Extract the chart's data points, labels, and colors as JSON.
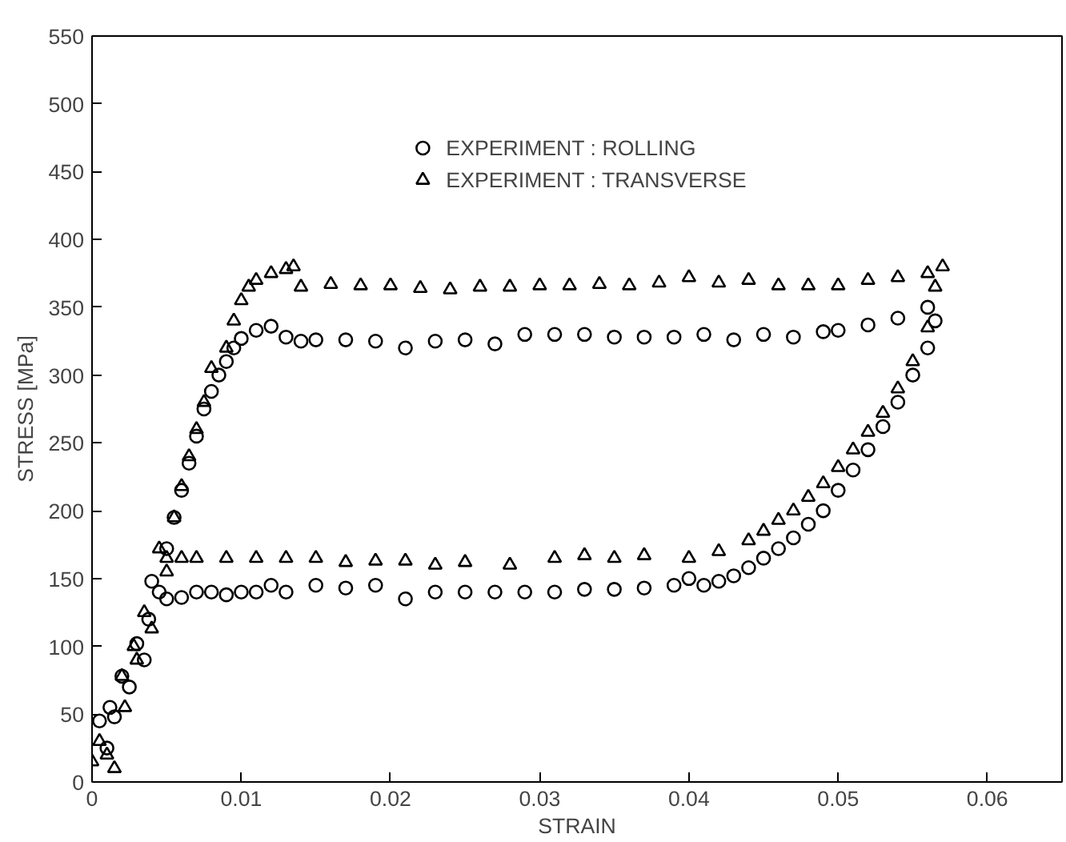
{
  "chart_data": {
    "type": "scatter",
    "xlabel": "STRAIN",
    "ylabel": "STRESS [MPa]",
    "xlim": [
      0,
      0.065
    ],
    "ylim": [
      0,
      550
    ],
    "xticks": [
      0,
      0.01,
      0.02,
      0.03,
      0.04,
      0.05,
      0.06
    ],
    "yticks": [
      0,
      50,
      100,
      150,
      200,
      250,
      300,
      350,
      400,
      450,
      500,
      550
    ],
    "grid": false,
    "legend": "top",
    "series": [
      {
        "name": "EXPERIMENT : ROLLING",
        "color": "#000000",
        "marker": "circle",
        "x": [
          0.0005,
          0.001,
          0.0012,
          0.0015,
          0.002,
          0.0025,
          0.003,
          0.0035,
          0.0038,
          0.004,
          0.0045,
          0.005,
          0.0055,
          0.006,
          0.0065,
          0.007,
          0.0075,
          0.008,
          0.0085,
          0.009,
          0.0095,
          0.01,
          0.011,
          0.012,
          0.013,
          0.014,
          0.015,
          0.017,
          0.019,
          0.021,
          0.023,
          0.025,
          0.027,
          0.029,
          0.031,
          0.033,
          0.035,
          0.037,
          0.039,
          0.041,
          0.043,
          0.045,
          0.047,
          0.049,
          0.05,
          0.052,
          0.054,
          0.056,
          0.005,
          0.006,
          0.007,
          0.008,
          0.009,
          0.01,
          0.011,
          0.012,
          0.013,
          0.015,
          0.017,
          0.019,
          0.021,
          0.023,
          0.025,
          0.027,
          0.029,
          0.031,
          0.033,
          0.035,
          0.037,
          0.039,
          0.04,
          0.041,
          0.042,
          0.043,
          0.044,
          0.045,
          0.046,
          0.047,
          0.048,
          0.049,
          0.05,
          0.051,
          0.052,
          0.053,
          0.054,
          0.055,
          0.056,
          0.0565
        ],
        "values": [
          45,
          25,
          55,
          48,
          78,
          70,
          102,
          90,
          120,
          148,
          140,
          172,
          195,
          215,
          235,
          255,
          275,
          288,
          300,
          310,
          320,
          327,
          333,
          336,
          328,
          325,
          326,
          326,
          325,
          320,
          325,
          326,
          323,
          330,
          330,
          330,
          328,
          328,
          328,
          330,
          326,
          330,
          328,
          332,
          333,
          337,
          342,
          350,
          135,
          136,
          140,
          140,
          138,
          140,
          140,
          145,
          140,
          145,
          143,
          145,
          135,
          140,
          140,
          140,
          140,
          140,
          142,
          142,
          143,
          145,
          150,
          145,
          148,
          152,
          158,
          165,
          172,
          180,
          190,
          200,
          215,
          230,
          245,
          262,
          280,
          300,
          320,
          340
        ]
      },
      {
        "name": "EXPERIMENT : TRANSVERSE",
        "color": "#000000",
        "marker": "triangle",
        "x": [
          0,
          0.0005,
          0.001,
          0.0015,
          0.002,
          0.0022,
          0.0028,
          0.003,
          0.0035,
          0.004,
          0.0045,
          0.005,
          0.0055,
          0.006,
          0.0065,
          0.007,
          0.0075,
          0.008,
          0.009,
          0.0095,
          0.01,
          0.0105,
          0.011,
          0.012,
          0.013,
          0.0135,
          0.014,
          0.016,
          0.018,
          0.02,
          0.022,
          0.024,
          0.026,
          0.028,
          0.03,
          0.032,
          0.034,
          0.036,
          0.038,
          0.04,
          0.042,
          0.044,
          0.046,
          0.048,
          0.05,
          0.052,
          0.054,
          0.056,
          0.057,
          0.005,
          0.006,
          0.007,
          0.009,
          0.011,
          0.013,
          0.015,
          0.017,
          0.019,
          0.021,
          0.023,
          0.025,
          0.028,
          0.031,
          0.033,
          0.035,
          0.037,
          0.04,
          0.042,
          0.044,
          0.045,
          0.046,
          0.047,
          0.048,
          0.049,
          0.05,
          0.051,
          0.052,
          0.053,
          0.054,
          0.055,
          0.056,
          0.0565
        ],
        "values": [
          15,
          30,
          20,
          10,
          78,
          55,
          100,
          90,
          125,
          113,
          172,
          165,
          195,
          218,
          240,
          260,
          280,
          305,
          320,
          340,
          355,
          365,
          370,
          375,
          378,
          380,
          365,
          367,
          366,
          366,
          364,
          363,
          365,
          365,
          366,
          366,
          367,
          366,
          368,
          372,
          368,
          370,
          366,
          366,
          366,
          370,
          372,
          375,
          380,
          155,
          165,
          165,
          165,
          165,
          165,
          165,
          162,
          163,
          163,
          160,
          162,
          160,
          165,
          167,
          165,
          167,
          165,
          170,
          178,
          185,
          193,
          200,
          210,
          220,
          232,
          245,
          258,
          272,
          290,
          310,
          335,
          365
        ]
      }
    ]
  }
}
